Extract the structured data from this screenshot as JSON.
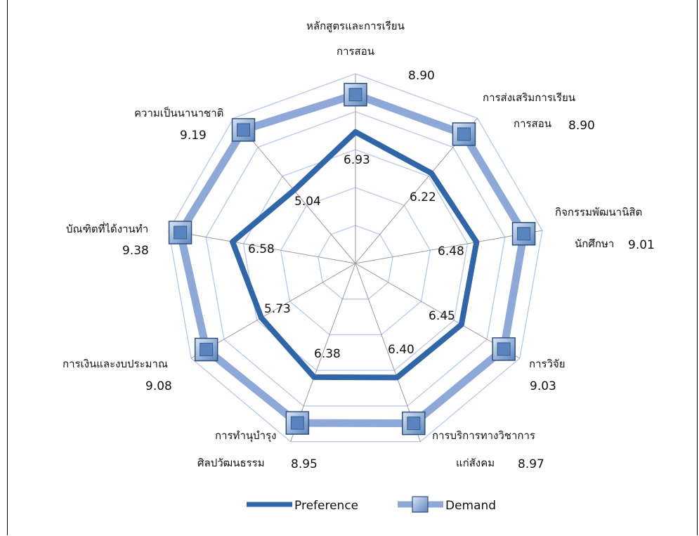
{
  "chart_data": {
    "type": "radar",
    "categories": [
      [
        "หลักสูตรและการเรียน",
        "การสอน"
      ],
      [
        "การส่งเสริมการเรียน",
        "การสอน"
      ],
      [
        "กิจกรรมพัฒนานิสิต",
        "นักศึกษา"
      ],
      [
        "การวิจัย"
      ],
      [
        "การบริการทางวิชาการ",
        "แก่สังคม"
      ],
      [
        "การทำนุบำรุง",
        "ศิลปวัฒนธรรม"
      ],
      [
        "การเงินและงบประมาณ"
      ],
      [
        "บัณฑิตที่ได้งานทำ"
      ],
      [
        "ความเป็นนานาชาติ"
      ]
    ],
    "rlim": [
      0,
      10
    ],
    "grid": true,
    "legend_position": "bottom",
    "series": [
      {
        "name": "Preference",
        "values": [
          6.93,
          6.22,
          6.48,
          6.45,
          6.4,
          6.38,
          5.73,
          6.58,
          5.04
        ],
        "value_labels": [
          "6.93",
          "6.22",
          "6.48",
          "6.45",
          "6.40",
          "6.38",
          "5.73",
          "6.58",
          "5.04"
        ],
        "color": "#3066A8"
      },
      {
        "name": "Demand",
        "values": [
          8.9,
          8.9,
          9.01,
          9.03,
          8.97,
          8.95,
          9.08,
          9.38,
          9.19
        ],
        "value_labels": [
          "8.90",
          "8.90",
          "9.01",
          "9.03",
          "8.97",
          "8.95",
          "9.08",
          "9.38",
          "9.19"
        ],
        "color": "#8EA8D8",
        "marker_color": "#5A84BD"
      }
    ]
  }
}
